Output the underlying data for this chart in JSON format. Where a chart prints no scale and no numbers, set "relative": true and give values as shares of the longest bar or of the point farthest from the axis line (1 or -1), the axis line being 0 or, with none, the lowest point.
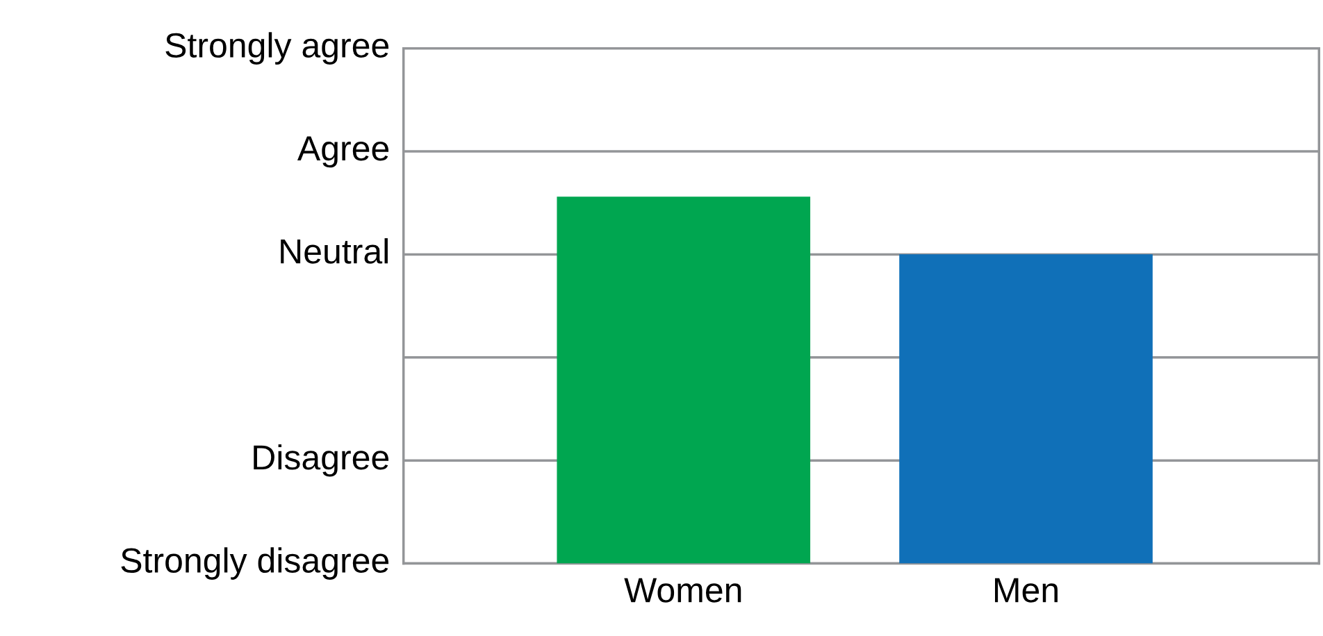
{
  "chart_data": {
    "type": "bar",
    "categories": [
      "Women",
      "Men"
    ],
    "values": [
      1,
      0.843
    ],
    "colors": [
      "#00a650",
      "#1070b8"
    ],
    "relative": true,
    "annotations": [
      "Strongly disagree",
      "Disagree",
      "Neutral",
      "Agree",
      "Strongly agree"
    ],
    "grid": "y"
  }
}
